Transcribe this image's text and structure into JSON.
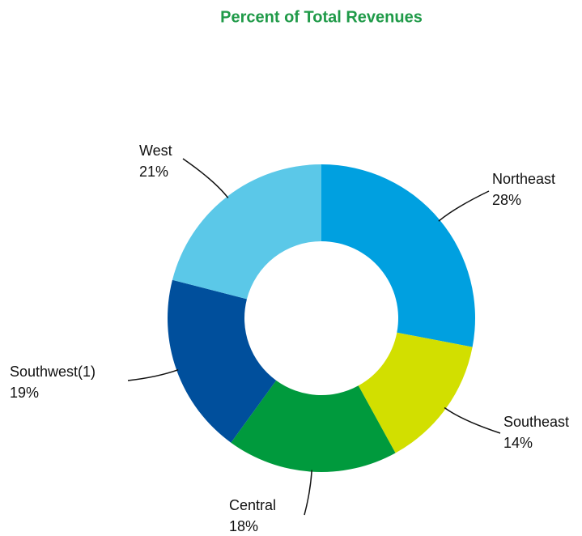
{
  "chart_data": {
    "type": "donut",
    "title": "Percent of Total Revenues",
    "categories": [
      "Northeast",
      "Southeast",
      "Central",
      "Southwest(1)",
      "West"
    ],
    "values": [
      28,
      14,
      18,
      19,
      21
    ],
    "value_labels": [
      "28%",
      "14%",
      "18%",
      "19%",
      "21%"
    ],
    "colors": [
      "#00a0e0",
      "#d2df00",
      "#009a3d",
      "#004f9c",
      "#5bc8e8"
    ]
  }
}
